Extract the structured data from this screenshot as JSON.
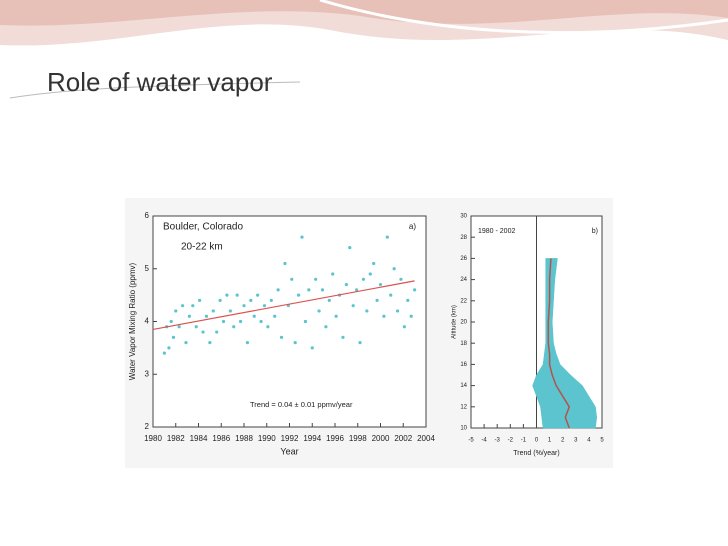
{
  "slide": {
    "title": "Role of water vapor"
  },
  "chart_data": [
    {
      "type": "scatter",
      "title": "Boulder, Colorado",
      "subtitle": "20-22 km",
      "panel": "a)",
      "annotation": "Trend = 0.04 ± 0.01 ppmv/year",
      "xlabel": "Year",
      "ylabel": "Water Vapor Mixing Ratio (ppmv)",
      "color": "#5bc4cf",
      "x": [
        1981.0,
        1981.2,
        1981.4,
        1981.6,
        1981.8,
        1982.0,
        1982.3,
        1982.6,
        1982.9,
        1983.2,
        1983.5,
        1983.8,
        1984.1,
        1984.4,
        1984.7,
        1985.0,
        1985.3,
        1985.6,
        1985.9,
        1986.2,
        1986.5,
        1986.8,
        1987.1,
        1987.4,
        1987.7,
        1988.0,
        1988.3,
        1988.6,
        1988.9,
        1989.2,
        1989.5,
        1989.8,
        1990.1,
        1990.4,
        1990.7,
        1991.0,
        1991.3,
        1991.6,
        1991.9,
        1992.2,
        1992.5,
        1992.8,
        1993.1,
        1993.4,
        1993.7,
        1994.0,
        1994.3,
        1994.6,
        1994.9,
        1995.2,
        1995.5,
        1995.8,
        1996.1,
        1996.4,
        1996.7,
        1997.0,
        1997.3,
        1997.6,
        1997.9,
        1998.2,
        1998.5,
        1998.8,
        1999.1,
        1999.4,
        1999.7,
        2000.0,
        2000.3,
        2000.6,
        2000.9,
        2001.2,
        2001.5,
        2001.8,
        2002.1,
        2002.4,
        2002.7,
        2003.0
      ],
      "values": [
        3.4,
        3.9,
        3.5,
        4.0,
        3.7,
        4.2,
        3.9,
        4.3,
        3.6,
        4.1,
        4.3,
        3.9,
        4.4,
        3.8,
        4.1,
        3.6,
        4.2,
        3.8,
        4.4,
        4.0,
        4.5,
        4.2,
        3.9,
        4.5,
        4.0,
        4.3,
        3.6,
        4.4,
        4.1,
        4.5,
        4.0,
        4.3,
        3.9,
        4.4,
        4.1,
        4.6,
        3.7,
        5.1,
        4.3,
        4.8,
        3.6,
        4.5,
        5.6,
        4.0,
        4.6,
        3.5,
        4.8,
        4.2,
        4.6,
        3.9,
        4.4,
        4.9,
        4.1,
        4.5,
        3.7,
        4.7,
        5.4,
        4.3,
        4.6,
        3.6,
        4.8,
        4.2,
        4.9,
        5.1,
        4.4,
        4.7,
        4.1,
        5.6,
        4.5,
        5.0,
        4.2,
        4.8,
        3.9,
        4.4,
        4.1,
        4.6
      ],
      "trend": {
        "color": "#d9534f",
        "x": [
          1980,
          2003
        ],
        "values": [
          3.85,
          4.77
        ]
      },
      "xlim": [
        1980,
        2004
      ],
      "xticks": [
        1980,
        1982,
        1984,
        1986,
        1988,
        1990,
        1992,
        1994,
        1996,
        1998,
        2000,
        2002,
        2004
      ],
      "ylim": [
        2,
        6
      ],
      "yticks": [
        2,
        3,
        4,
        5,
        6
      ]
    },
    {
      "type": "profile",
      "title": "1980 - 2002",
      "panel": "b)",
      "xlabel": "Trend (%/year)",
      "ylabel": "Altitude (km)",
      "y": [
        10,
        11,
        12,
        13,
        14,
        15,
        16,
        17,
        18,
        20,
        22,
        24,
        26
      ],
      "series": [
        {
          "color": "#b5534a",
          "values": [
            2.5,
            2.2,
            2.5,
            2.0,
            1.5,
            1.2,
            1.0,
            1.0,
            0.9,
            0.9,
            1.0,
            1.0,
            1.1
          ]
        }
      ],
      "band": {
        "color": "#5bc4cf",
        "low": [
          0.5,
          0.4,
          0.3,
          0.0,
          -0.3,
          0.0,
          0.5,
          0.6,
          0.7,
          0.7,
          0.7,
          0.7,
          0.7
        ],
        "high": [
          4.5,
          4.6,
          4.5,
          4.0,
          3.5,
          2.6,
          1.8,
          1.5,
          1.3,
          1.2,
          1.3,
          1.4,
          1.6
        ]
      },
      "xlim": [
        -5,
        5
      ],
      "xticks": [
        -5,
        -4,
        -3,
        -2,
        -1,
        0,
        1,
        2,
        3,
        4,
        5
      ],
      "ylim": [
        10,
        30
      ],
      "yticks": [
        10,
        12,
        14,
        16,
        18,
        20,
        22,
        24,
        26,
        28,
        30
      ]
    }
  ]
}
